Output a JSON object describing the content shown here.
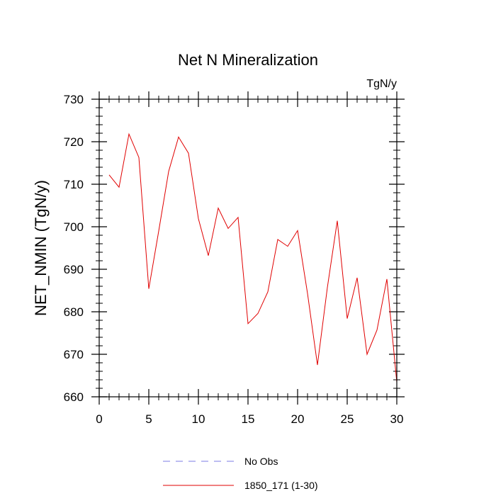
{
  "chart_data": {
    "type": "line",
    "title": "Net N Mineralization",
    "units_label": "TgN/y",
    "xlabel": "",
    "ylabel": "NET_NMIN  (TgN/y)",
    "xlim": [
      0,
      30
    ],
    "ylim": [
      660,
      730
    ],
    "x_ticks": [
      0,
      5,
      10,
      15,
      20,
      25,
      30
    ],
    "y_ticks": [
      660,
      670,
      680,
      690,
      700,
      710,
      720,
      730
    ],
    "x_minor_step": 1,
    "y_minor_step": 2,
    "grid": false,
    "legend_position": "bottom-center",
    "series": [
      {
        "name": "No Obs",
        "color": "#7b7be6",
        "style": "dashed",
        "x": [],
        "y": []
      },
      {
        "name": "1850_171 (1-30)",
        "color": "#e00000",
        "style": "solid",
        "x": [
          1,
          2,
          3,
          4,
          5,
          6,
          7,
          8,
          9,
          10,
          11,
          12,
          13,
          14,
          15,
          16,
          17,
          18,
          19,
          20,
          21,
          22,
          23,
          24,
          25,
          26,
          27,
          28,
          29,
          30
        ],
        "y": [
          712.2,
          709.3,
          721.8,
          716.3,
          685.4,
          699.0,
          713.0,
          721.1,
          717.3,
          701.9,
          693.2,
          704.4,
          699.6,
          702.2,
          677.2,
          679.6,
          684.7,
          697.0,
          695.4,
          699.1,
          684.3,
          667.5,
          685.7,
          701.4,
          678.4,
          688.0,
          670.0,
          675.7,
          687.7,
          663.4
        ]
      }
    ]
  }
}
